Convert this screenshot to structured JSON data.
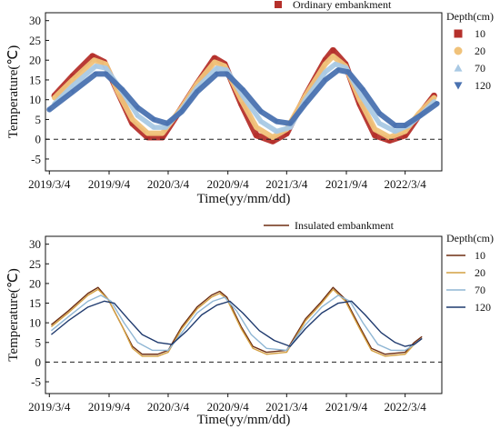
{
  "chart_data": [
    {
      "type": "scatter",
      "title": "Ordinary embankment",
      "xlabel": "Time(yy/mm/dd)",
      "ylabel": "Temperature(℃)",
      "ylim": [
        -8,
        32
      ],
      "yticks": [
        -5,
        0,
        5,
        10,
        15,
        20,
        25,
        30
      ],
      "xlim": [
        "2019-02-20",
        "2022-06-25"
      ],
      "xticks": [
        "2019-03-04",
        "2019-09-04",
        "2020-03-04",
        "2020-09-04",
        "2021-03-04",
        "2021-09-04",
        "2022-03-04"
      ],
      "xtick_labels": [
        "2019/3/4",
        "2019/9/4",
        "2020/3/4",
        "2020/9/4",
        "2021/3/4",
        "2021/9/4",
        "2022/3/4"
      ],
      "legend_title": "Depth(cm)",
      "legend_position": "right",
      "reference_line": {
        "y": 0,
        "style": "dashed"
      },
      "series": [
        {
          "name": "10",
          "marker": "square",
          "color": "#b5302b",
          "points": [
            [
              "2019-03-20",
              11
            ],
            [
              "2019-05-15",
              16
            ],
            [
              "2019-07-15",
              21
            ],
            [
              "2019-08-20",
              19.5
            ],
            [
              "2019-10-01",
              12
            ],
            [
              "2019-11-15",
              4
            ],
            [
              "2020-01-01",
              0.5
            ],
            [
              "2020-02-15",
              0.5
            ],
            [
              "2020-04-15",
              8
            ],
            [
              "2020-06-01",
              14
            ],
            [
              "2020-07-25",
              20.5
            ],
            [
              "2020-08-25",
              19
            ],
            [
              "2020-10-15",
              9
            ],
            [
              "2020-12-01",
              1
            ],
            [
              "2021-01-20",
              -0.5
            ],
            [
              "2021-03-04",
              1.5
            ],
            [
              "2021-05-01",
              11
            ],
            [
              "2021-07-01",
              20
            ],
            [
              "2021-07-25",
              22.5
            ],
            [
              "2021-09-01",
              19
            ],
            [
              "2021-10-15",
              9
            ],
            [
              "2021-12-01",
              1
            ],
            [
              "2022-01-15",
              -0.3
            ],
            [
              "2022-03-04",
              1
            ],
            [
              "2022-04-15",
              6
            ],
            [
              "2022-06-01",
              11
            ]
          ]
        },
        {
          "name": "20",
          "marker": "circle",
          "color": "#f0c27a",
          "points": [
            [
              "2019-03-20",
              10.5
            ],
            [
              "2019-05-15",
              15
            ],
            [
              "2019-07-20",
              20
            ],
            [
              "2019-08-25",
              19
            ],
            [
              "2019-10-01",
              12
            ],
            [
              "2019-11-15",
              5
            ],
            [
              "2020-01-01",
              1.5
            ],
            [
              "2020-02-15",
              1.5
            ],
            [
              "2020-04-15",
              8
            ],
            [
              "2020-06-01",
              14
            ],
            [
              "2020-07-25",
              19.5
            ],
            [
              "2020-08-25",
              18.5
            ],
            [
              "2020-10-15",
              10
            ],
            [
              "2020-12-01",
              3
            ],
            [
              "2021-01-20",
              0.5
            ],
            [
              "2021-03-04",
              2.5
            ],
            [
              "2021-05-01",
              11
            ],
            [
              "2021-07-01",
              19
            ],
            [
              "2021-07-25",
              21
            ],
            [
              "2021-09-01",
              18.5
            ],
            [
              "2021-10-15",
              10
            ],
            [
              "2021-12-01",
              2.5
            ],
            [
              "2022-01-15",
              0.5
            ],
            [
              "2022-03-04",
              2
            ],
            [
              "2022-04-15",
              6.5
            ],
            [
              "2022-06-01",
              10.5
            ]
          ]
        },
        {
          "name": "70",
          "marker": "triangle-up",
          "color": "#a9c9e4",
          "points": [
            [
              "2019-03-20",
              9
            ],
            [
              "2019-05-15",
              13.5
            ],
            [
              "2019-07-25",
              18.5
            ],
            [
              "2019-08-25",
              18
            ],
            [
              "2019-10-15",
              12
            ],
            [
              "2019-12-01",
              6
            ],
            [
              "2020-01-20",
              3
            ],
            [
              "2020-02-25",
              3
            ],
            [
              "2020-04-15",
              7.5
            ],
            [
              "2020-06-01",
              13
            ],
            [
              "2020-08-01",
              18
            ],
            [
              "2020-09-01",
              17.5
            ],
            [
              "2020-10-20",
              11
            ],
            [
              "2020-12-15",
              4.5
            ],
            [
              "2021-02-01",
              2
            ],
            [
              "2021-03-15",
              3
            ],
            [
              "2021-05-01",
              10
            ],
            [
              "2021-07-01",
              17
            ],
            [
              "2021-08-01",
              19
            ],
            [
              "2021-09-04",
              18
            ],
            [
              "2021-10-20",
              11
            ],
            [
              "2021-12-15",
              4
            ],
            [
              "2022-02-01",
              2
            ],
            [
              "2022-03-15",
              3.5
            ],
            [
              "2022-04-20",
              6
            ],
            [
              "2022-06-01",
              9.5
            ]
          ]
        },
        {
          "name": "120",
          "marker": "triangle-down",
          "color": "#4a72b0",
          "points": [
            [
              "2019-03-04",
              7.5
            ],
            [
              "2019-05-15",
              12
            ],
            [
              "2019-07-25",
              16.5
            ],
            [
              "2019-08-25",
              16.5
            ],
            [
              "2019-10-15",
              12.5
            ],
            [
              "2019-12-01",
              8
            ],
            [
              "2020-01-20",
              5
            ],
            [
              "2020-03-01",
              4
            ],
            [
              "2020-04-15",
              7
            ],
            [
              "2020-06-01",
              12
            ],
            [
              "2020-08-01",
              16.5
            ],
            [
              "2020-09-01",
              16.5
            ],
            [
              "2020-10-20",
              12.5
            ],
            [
              "2020-12-15",
              7
            ],
            [
              "2021-02-01",
              4.5
            ],
            [
              "2021-03-15",
              4
            ],
            [
              "2021-05-01",
              9
            ],
            [
              "2021-07-01",
              15
            ],
            [
              "2021-08-10",
              17.5
            ],
            [
              "2021-09-10",
              17
            ],
            [
              "2021-10-25",
              12.5
            ],
            [
              "2021-12-15",
              6.5
            ],
            [
              "2022-02-01",
              3.5
            ],
            [
              "2022-03-04",
              3.5
            ],
            [
              "2022-04-20",
              6
            ],
            [
              "2022-06-10",
              9
            ]
          ]
        }
      ]
    },
    {
      "type": "line",
      "title": "Insulated embankment",
      "xlabel": "Time(yy/mm/dd)",
      "ylabel": "Temperature(℃)",
      "ylim": [
        -8,
        32
      ],
      "yticks": [
        -5,
        0,
        5,
        10,
        15,
        20,
        25,
        30
      ],
      "xlim": [
        "2019-02-20",
        "2022-06-25"
      ],
      "xticks": [
        "2019-03-04",
        "2019-09-04",
        "2020-03-04",
        "2020-09-04",
        "2021-03-04",
        "2021-09-04",
        "2022-03-04"
      ],
      "xtick_labels": [
        "2019/3/4",
        "2019/9/4",
        "2020/3/4",
        "2020/9/4",
        "2021/3/4",
        "2021/9/4",
        "2022/3/4"
      ],
      "legend_title": "Depth(cm)",
      "legend_position": "right",
      "reference_line": {
        "y": 0,
        "style": "dashed"
      },
      "series": [
        {
          "name": "10",
          "color": "#6e2e12",
          "points": [
            [
              "2019-03-10",
              9.5
            ],
            [
              "2019-05-01",
              13
            ],
            [
              "2019-07-01",
              17.5
            ],
            [
              "2019-08-01",
              19
            ],
            [
              "2019-09-01",
              16
            ],
            [
              "2019-10-15",
              9
            ],
            [
              "2019-11-15",
              4
            ],
            [
              "2019-12-15",
              2
            ],
            [
              "2020-02-01",
              2
            ],
            [
              "2020-03-04",
              3
            ],
            [
              "2020-04-15",
              9
            ],
            [
              "2020-06-01",
              14
            ],
            [
              "2020-07-15",
              17
            ],
            [
              "2020-08-10",
              18
            ],
            [
              "2020-09-01",
              16.5
            ],
            [
              "2020-10-15",
              9
            ],
            [
              "2020-11-20",
              4
            ],
            [
              "2021-01-01",
              2.5
            ],
            [
              "2021-03-04",
              3
            ],
            [
              "2021-05-01",
              11
            ],
            [
              "2021-06-15",
              15
            ],
            [
              "2021-07-25",
              19
            ],
            [
              "2021-09-01",
              16
            ],
            [
              "2021-10-15",
              9
            ],
            [
              "2021-11-20",
              3.5
            ],
            [
              "2022-01-01",
              2
            ],
            [
              "2022-03-04",
              2.5
            ],
            [
              "2022-04-01",
              5
            ],
            [
              "2022-04-25",
              6.5
            ]
          ]
        },
        {
          "name": "20",
          "color": "#d4a042",
          "points": [
            [
              "2019-03-10",
              9
            ],
            [
              "2019-05-01",
              12.5
            ],
            [
              "2019-07-01",
              17
            ],
            [
              "2019-08-01",
              18.5
            ],
            [
              "2019-09-01",
              16
            ],
            [
              "2019-10-15",
              9
            ],
            [
              "2019-11-15",
              3.5
            ],
            [
              "2019-12-15",
              1.5
            ],
            [
              "2020-02-01",
              1.5
            ],
            [
              "2020-03-04",
              2.5
            ],
            [
              "2020-04-15",
              8.5
            ],
            [
              "2020-06-01",
              13.5
            ],
            [
              "2020-07-15",
              16.5
            ],
            [
              "2020-08-10",
              17.5
            ],
            [
              "2020-09-01",
              16
            ],
            [
              "2020-10-15",
              8.5
            ],
            [
              "2020-11-20",
              3.5
            ],
            [
              "2021-01-01",
              2
            ],
            [
              "2021-03-04",
              2.5
            ],
            [
              "2021-05-01",
              10.5
            ],
            [
              "2021-06-15",
              14.5
            ],
            [
              "2021-07-25",
              18.5
            ],
            [
              "2021-09-01",
              15.5
            ],
            [
              "2021-10-15",
              8.5
            ],
            [
              "2021-11-20",
              3
            ],
            [
              "2022-01-01",
              1.5
            ],
            [
              "2022-03-04",
              2
            ],
            [
              "2022-04-01",
              4.5
            ],
            [
              "2022-04-25",
              6
            ]
          ]
        },
        {
          "name": "70",
          "color": "#8fb6d4",
          "points": [
            [
              "2019-03-10",
              8
            ],
            [
              "2019-05-01",
              11.5
            ],
            [
              "2019-07-01",
              15.5
            ],
            [
              "2019-08-10",
              17
            ],
            [
              "2019-09-10",
              15.5
            ],
            [
              "2019-10-20",
              10
            ],
            [
              "2019-12-01",
              5
            ],
            [
              "2020-01-15",
              3
            ],
            [
              "2020-03-04",
              3
            ],
            [
              "2020-04-20",
              8
            ],
            [
              "2020-06-01",
              12.5
            ],
            [
              "2020-07-20",
              15.5
            ],
            [
              "2020-08-25",
              16.5
            ],
            [
              "2020-10-01",
              13
            ],
            [
              "2020-11-15",
              7
            ],
            [
              "2021-01-01",
              3.5
            ],
            [
              "2021-03-04",
              3
            ],
            [
              "2021-05-01",
              9.5
            ],
            [
              "2021-06-20",
              14
            ],
            [
              "2021-08-10",
              17
            ],
            [
              "2021-09-15",
              15.5
            ],
            [
              "2021-10-25",
              10
            ],
            [
              "2021-12-10",
              4.5
            ],
            [
              "2022-01-20",
              3
            ],
            [
              "2022-03-04",
              3
            ],
            [
              "2022-04-01",
              4.5
            ],
            [
              "2022-04-25",
              6
            ]
          ]
        },
        {
          "name": "120",
          "color": "#1f3a6e",
          "points": [
            [
              "2019-03-10",
              7
            ],
            [
              "2019-05-01",
              10.5
            ],
            [
              "2019-07-01",
              14
            ],
            [
              "2019-08-20",
              15.5
            ],
            [
              "2019-09-20",
              15
            ],
            [
              "2019-11-01",
              11
            ],
            [
              "2019-12-15",
              7
            ],
            [
              "2020-02-01",
              5
            ],
            [
              "2020-03-15",
              4.5
            ],
            [
              "2020-05-01",
              8
            ],
            [
              "2020-06-15",
              12
            ],
            [
              "2020-08-01",
              14.5
            ],
            [
              "2020-09-10",
              15.5
            ],
            [
              "2020-10-20",
              12.5
            ],
            [
              "2020-12-10",
              8
            ],
            [
              "2021-01-25",
              5.5
            ],
            [
              "2021-03-15",
              4
            ],
            [
              "2021-05-01",
              8.5
            ],
            [
              "2021-06-20",
              12.5
            ],
            [
              "2021-08-10",
              15
            ],
            [
              "2021-09-20",
              15.5
            ],
            [
              "2021-11-01",
              12
            ],
            [
              "2021-12-20",
              7.5
            ],
            [
              "2022-02-01",
              5
            ],
            [
              "2022-03-04",
              4
            ],
            [
              "2022-04-01",
              4.5
            ],
            [
              "2022-04-25",
              6
            ]
          ]
        }
      ]
    }
  ],
  "colors": {
    "axis": "#111111",
    "reference_line": "#222222"
  }
}
